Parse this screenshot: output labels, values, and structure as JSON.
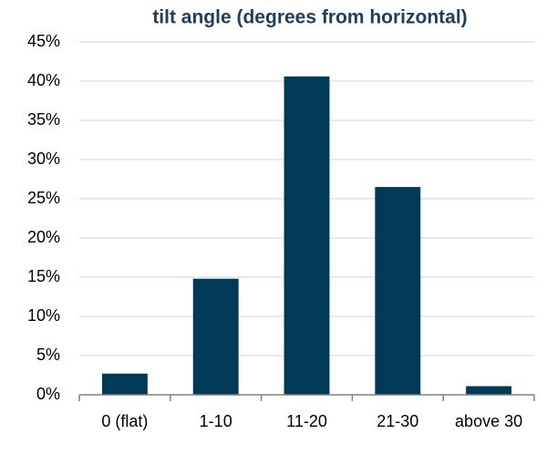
{
  "chart_data": {
    "type": "bar",
    "title": "tilt angle (degrees from horizontal)",
    "categories": [
      "0 (flat)",
      "1-10",
      "11-20",
      "21-30",
      "above 30"
    ],
    "values": [
      2.7,
      14.8,
      40.6,
      26.5,
      1.1
    ],
    "color": "#003a57",
    "ylim": [
      0,
      45
    ],
    "yticks": [
      {
        "value": 0,
        "label": "0%"
      },
      {
        "value": 5,
        "label": "5%"
      },
      {
        "value": 10,
        "label": "10%"
      },
      {
        "value": 15,
        "label": "15%"
      },
      {
        "value": 20,
        "label": "20%"
      },
      {
        "value": 25,
        "label": "25%"
      },
      {
        "value": 30,
        "label": "30%"
      },
      {
        "value": 35,
        "label": "35%"
      },
      {
        "value": 40,
        "label": "40%"
      },
      {
        "value": 45,
        "label": "45%"
      }
    ],
    "grid": true
  }
}
